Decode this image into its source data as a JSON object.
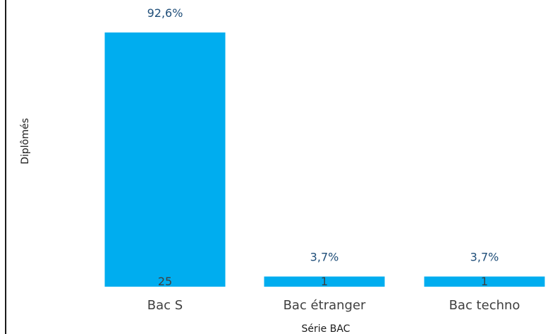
{
  "chart_data": {
    "type": "bar",
    "xlabel": "Série BAC",
    "ylabel": "Diplômés",
    "categories": [
      "Bac S",
      "Bac étranger",
      "Bac techno"
    ],
    "values": [
      25,
      1,
      1
    ],
    "percent_labels": [
      "92,6%",
      "3,7%",
      "3,7%"
    ],
    "count_labels": [
      "25",
      "1",
      "1"
    ],
    "ylim": [
      0,
      25
    ],
    "grid": false,
    "bar_color": "#00adef",
    "percent_label_color": "#1f4e79",
    "count_label_color": "#404040"
  }
}
